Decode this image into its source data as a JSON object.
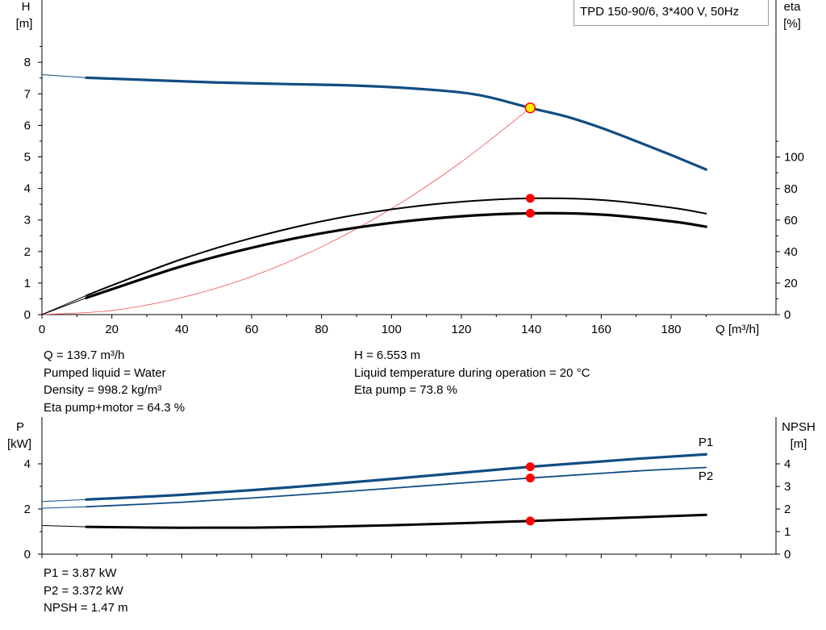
{
  "chart_data": [
    {
      "type": "line",
      "legend_text": "TPD 150-90/6, 3*400 V, 50Hz",
      "legend_position": "top-right",
      "xlabel": "Q [m³/h]",
      "y_left_label": [
        "H",
        "[m]"
      ],
      "y_right_label": [
        "eta",
        "[%]"
      ],
      "xlim": [
        0,
        210
      ],
      "ylim_left": [
        0,
        9
      ],
      "ylim_right": [
        0,
        100
      ],
      "x_ticks": [
        0,
        20,
        40,
        60,
        80,
        100,
        120,
        140,
        160,
        180
      ],
      "y_left_ticks": [
        0,
        1,
        2,
        3,
        4,
        5,
        6,
        7,
        8
      ],
      "y_right_ticks": [
        0,
        20,
        40,
        60,
        80,
        100
      ],
      "grid": false,
      "colors": {
        "head": "#124c85",
        "eta": "#000000",
        "system": "#f05050",
        "marker": "#ff0000",
        "duty": "#ffee00"
      },
      "series": [
        {
          "role": "head",
          "axis": "left",
          "color": "#124c85",
          "x": [
            0,
            12.7,
            30,
            50,
            70,
            90,
            110,
            125,
            139.7,
            150,
            160,
            170,
            180,
            190
          ],
          "y": [
            7.61,
            7.51,
            7.44,
            7.36,
            7.31,
            7.26,
            7.14,
            6.96,
            6.553,
            6.28,
            5.92,
            5.5,
            5.06,
            4.6
          ],
          "extrapolated_to": 12.7
        },
        {
          "role": "eta-pump",
          "axis": "right",
          "color": "#000000",
          "x": [
            0,
            12.7,
            20,
            40,
            60,
            80,
            100,
            120,
            139.7,
            160,
            180,
            190
          ],
          "y": [
            0,
            12.1,
            18.5,
            35.2,
            48.6,
            59.2,
            66.8,
            71.6,
            73.8,
            72.8,
            67.9,
            64.1
          ],
          "extrapolated_to": 12.7
        },
        {
          "role": "eta-pump-motor",
          "axis": "right",
          "color": "#000000",
          "x": [
            0,
            12.7,
            20,
            40,
            60,
            80,
            100,
            120,
            139.7,
            160,
            180,
            190
          ],
          "y": [
            0,
            10.6,
            16.1,
            30.7,
            42.4,
            51.6,
            58.2,
            62.4,
            64.3,
            63.5,
            59.2,
            55.8
          ],
          "extrapolated_to": 12.7
        },
        {
          "role": "system-curve",
          "axis": "left",
          "color": "#f05050",
          "x": [
            0,
            20,
            40,
            60,
            80,
            100,
            120,
            139.7
          ],
          "y": [
            0,
            0.13,
            0.54,
            1.21,
            2.15,
            3.36,
            4.84,
            6.553
          ]
        }
      ],
      "markers": [
        {
          "x": 139.7,
          "y": 6.553,
          "axis": "left",
          "style": "duty"
        },
        {
          "x": 139.7,
          "y": 73.8,
          "axis": "right",
          "style": "red"
        },
        {
          "x": 139.7,
          "y": 64.3,
          "axis": "right",
          "style": "red"
        }
      ]
    },
    {
      "type": "line",
      "y_left_label": [
        "P",
        "[kW]"
      ],
      "y_right_label": [
        "NPSH",
        "[m]"
      ],
      "xlim": [
        0,
        210
      ],
      "ylim_left": [
        0,
        5
      ],
      "ylim_right": [
        0,
        5
      ],
      "y_left_ticks": [
        0,
        2,
        4
      ],
      "y_right_ticks": [
        0,
        1,
        2,
        3,
        4
      ],
      "grid": false,
      "series": [
        {
          "name": "P1",
          "axis": "left",
          "color": "#124c85",
          "x": [
            0,
            12.7,
            40,
            70,
            100,
            139.7,
            170,
            190
          ],
          "y": [
            2.33,
            2.42,
            2.63,
            2.95,
            3.33,
            3.87,
            4.22,
            4.42
          ],
          "extrapolated_to": 12.7
        },
        {
          "name": "P2",
          "axis": "left",
          "color": "#124c85",
          "x": [
            0,
            12.7,
            40,
            70,
            100,
            139.7,
            170,
            190
          ],
          "y": [
            2.03,
            2.1,
            2.3,
            2.59,
            2.92,
            3.372,
            3.68,
            3.84
          ],
          "extrapolated_to": 12.7
        },
        {
          "role": "npsh",
          "axis": "right",
          "color": "#000000",
          "x": [
            0,
            12.7,
            40,
            70,
            100,
            139.7,
            170,
            190
          ],
          "y": [
            1.27,
            1.21,
            1.17,
            1.19,
            1.28,
            1.47,
            1.63,
            1.74
          ],
          "extrapolated_to": 12.7
        }
      ],
      "markers": [
        {
          "x": 139.7,
          "y": 3.87,
          "axis": "left",
          "style": "red"
        },
        {
          "x": 139.7,
          "y": 3.372,
          "axis": "left",
          "style": "red"
        },
        {
          "x": 139.7,
          "y": 1.47,
          "axis": "right",
          "style": "red"
        }
      ]
    }
  ],
  "info_top_left": [
    "Q = 139.7 m³/h",
    "Pumped liquid = Water",
    "Density = 998.2 kg/m³",
    "Eta pump+motor = 64.3 %"
  ],
  "info_top_right": [
    "H = 6.553 m",
    "Liquid temperature during operation = 20 °C",
    "Eta pump = 73.8 %"
  ],
  "info_bottom": [
    "P1 = 3.87 kW",
    "P2 = 3.372 kW",
    "NPSH = 1.47 m"
  ]
}
